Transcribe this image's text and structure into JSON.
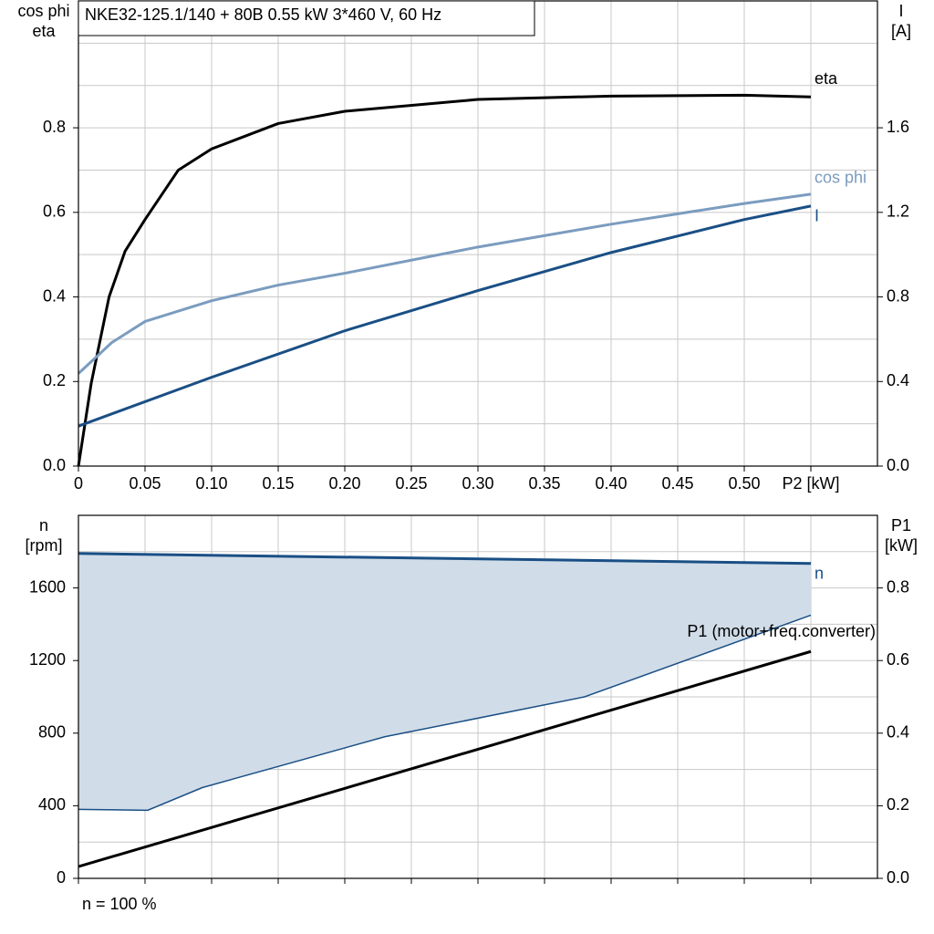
{
  "chart_data": [
    {
      "type": "line",
      "title": "NKE32-125.1/140 + 80B   0.55 kW   3*460 V, 60 Hz",
      "y_label": [
        "cos phi",
        "eta"
      ],
      "y2_label": [
        "I",
        "[A]"
      ],
      "xlim": [
        0,
        0.6
      ],
      "xticks": [
        0,
        0.05,
        {
          "value": 0.1,
          "label": "0.10"
        },
        0.15,
        {
          "value": 0.2,
          "label": "0.20"
        },
        0.25,
        {
          "value": 0.3,
          "label": "0.30"
        },
        0.35,
        {
          "value": 0.4,
          "label": "0.40"
        },
        0.45,
        {
          "value": 0.5,
          "label": "0.50"
        },
        {
          "value": 0.55,
          "label": "P2 [kW]"
        }
      ],
      "ylim": [
        0,
        1.1
      ],
      "yticks": [
        {
          "value": 0,
          "label": "0.0"
        },
        0.2,
        0.4,
        0.6,
        0.8
      ],
      "ygrid": [
        0.1,
        0.2,
        0.3,
        0.4,
        0.5,
        0.6,
        0.7,
        0.8,
        0.9,
        1.0
      ],
      "y2lim": [
        0,
        2.2
      ],
      "y2ticks": [
        {
          "value": 0,
          "label": "0.0"
        },
        0.4,
        0.8,
        1.2,
        1.6
      ],
      "grid": true,
      "series": [
        {
          "name": "eta",
          "color": "#000000",
          "x": [
            0,
            0.0096,
            0.023,
            0.035,
            0.05,
            0.075,
            0.1,
            0.15,
            0.2,
            0.3,
            0.4,
            0.5,
            0.55
          ],
          "values": [
            0,
            0.196,
            0.4,
            0.508,
            0.583,
            0.7,
            0.75,
            0.81,
            0.839,
            0.867,
            0.875,
            0.877,
            0.873
          ]
        },
        {
          "name": "cos phi",
          "color": "#7b9cbf",
          "x": [
            0,
            0.025,
            0.05,
            0.1,
            0.15,
            0.2,
            0.3,
            0.4,
            0.5,
            0.55
          ],
          "values": [
            0.219,
            0.292,
            0.342,
            0.391,
            0.428,
            0.456,
            0.518,
            0.572,
            0.621,
            0.643
          ]
        },
        {
          "name": "I",
          "color": "#1a4f85",
          "axis": "y2",
          "x": [
            0,
            0.1,
            0.2,
            0.3,
            0.4,
            0.5,
            0.55
          ],
          "values": [
            0.189,
            0.42,
            0.64,
            0.83,
            1.01,
            1.166,
            1.23
          ]
        }
      ]
    },
    {
      "type": "line",
      "y_label": [
        "n",
        "[rpm]"
      ],
      "y2_label": [
        "P1",
        "[kW]"
      ],
      "footer": "n = 100 %",
      "xlim": [
        0,
        0.6
      ],
      "xticks": [
        0,
        0.05,
        0.1,
        0.15,
        0.2,
        0.25,
        0.3,
        0.35,
        0.4,
        0.45,
        0.5,
        0.55
      ],
      "xtick_labels": false,
      "ylim": [
        0,
        2000
      ],
      "yticks": [
        0,
        400,
        800,
        1200,
        1600
      ],
      "ygrid": [
        200,
        400,
        600,
        800,
        1000,
        1200,
        1400,
        1600,
        1800
      ],
      "y2lim": [
        0,
        1.0
      ],
      "y2ticks": [
        {
          "value": 0,
          "label": "0.0"
        },
        0.2,
        0.4,
        0.6,
        0.8
      ],
      "grid": true,
      "series": [
        {
          "name": "n",
          "color": "#1a4f85",
          "x": [
            0,
            0.55
          ],
          "values": [
            1790,
            1735
          ],
          "band": {
            "fill": "#d0dce8",
            "x": [
              0,
              0.052,
              0.093,
              0.23,
              0.38,
              0.55
            ],
            "values": [
              380,
              375,
              500,
              780,
              1000,
              1450
            ]
          }
        },
        {
          "name": "P1 (motor+freq.converter)",
          "color": "#000000",
          "axis": "y2",
          "x": [
            0,
            0.55
          ],
          "values": [
            0.0325,
            0.625
          ]
        }
      ]
    }
  ]
}
